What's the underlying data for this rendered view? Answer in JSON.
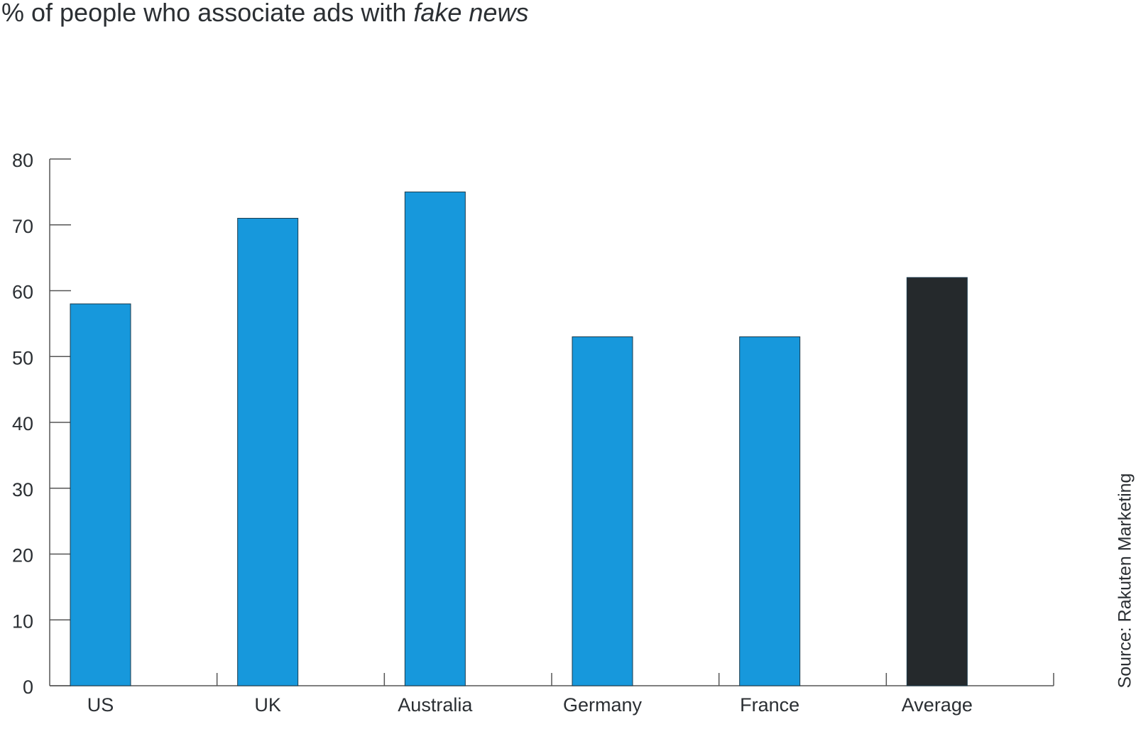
{
  "chart_data": {
    "type": "bar",
    "title": [
      "% of people who associate ads with",
      "fake news"
    ],
    "source": "Source: Rakuten Marketing",
    "categories": [
      "US",
      "UK",
      "Australia",
      "Germany",
      "France",
      "Average"
    ],
    "values": [
      58,
      71,
      75,
      53,
      53,
      62
    ],
    "colors": [
      "#1798dc",
      "#1798dc",
      "#1798dc",
      "#1798dc",
      "#1798dc",
      "#25292c"
    ],
    "ylim": [
      0,
      80
    ],
    "yticks": [
      0,
      10,
      20,
      30,
      40,
      50,
      60,
      70,
      80
    ],
    "grid": false
  }
}
